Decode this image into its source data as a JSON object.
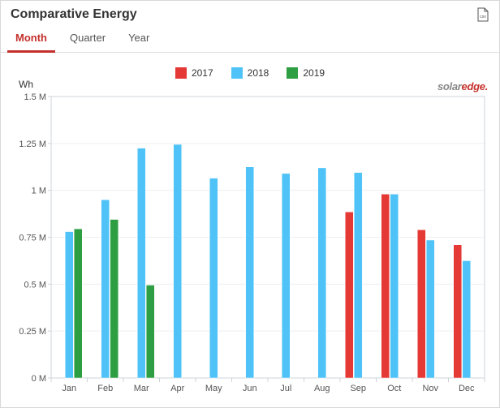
{
  "header": {
    "title": "Comparative Energy",
    "csv_icon_label": "csv"
  },
  "tabs": {
    "active_index": 0,
    "items": [
      {
        "label": "Month"
      },
      {
        "label": "Quarter"
      },
      {
        "label": "Year"
      }
    ]
  },
  "brand": {
    "part1": "solar",
    "part2": "edge"
  },
  "chart": {
    "type": "bar",
    "unit_label": "Wh",
    "categories": [
      "Jan",
      "Feb",
      "Mar",
      "Apr",
      "May",
      "Jun",
      "Jul",
      "Aug",
      "Sep",
      "Oct",
      "Nov",
      "Dec"
    ],
    "ylim": [
      0,
      1500000
    ],
    "ytick_step": 250000,
    "ytick_labels": [
      "0 M",
      "0.25 M",
      "0.5 M",
      "0.75 M",
      "1 M",
      "1.25 M",
      "1.5 M"
    ],
    "background_color": "#ffffff",
    "plot_border_color": "#cfd4d8",
    "grid_color": "#eceff1",
    "axis_fontsize": 11,
    "tick_color": "#555555",
    "bar_group_width": 0.72,
    "bar_gap": 0.02,
    "series": [
      {
        "name": "2017",
        "color": "#e53935",
        "values": [
          null,
          null,
          null,
          null,
          null,
          null,
          null,
          null,
          885000,
          980000,
          790000,
          710000
        ]
      },
      {
        "name": "2018",
        "color": "#4fc3f7",
        "values": [
          780000,
          950000,
          1225000,
          1245000,
          1065000,
          1125000,
          1090000,
          1120000,
          1095000,
          980000,
          735000,
          625000
        ]
      },
      {
        "name": "2019",
        "color": "#2e9e43",
        "values": [
          795000,
          845000,
          495000,
          null,
          null,
          null,
          null,
          null,
          null,
          null,
          null,
          null
        ]
      }
    ]
  }
}
